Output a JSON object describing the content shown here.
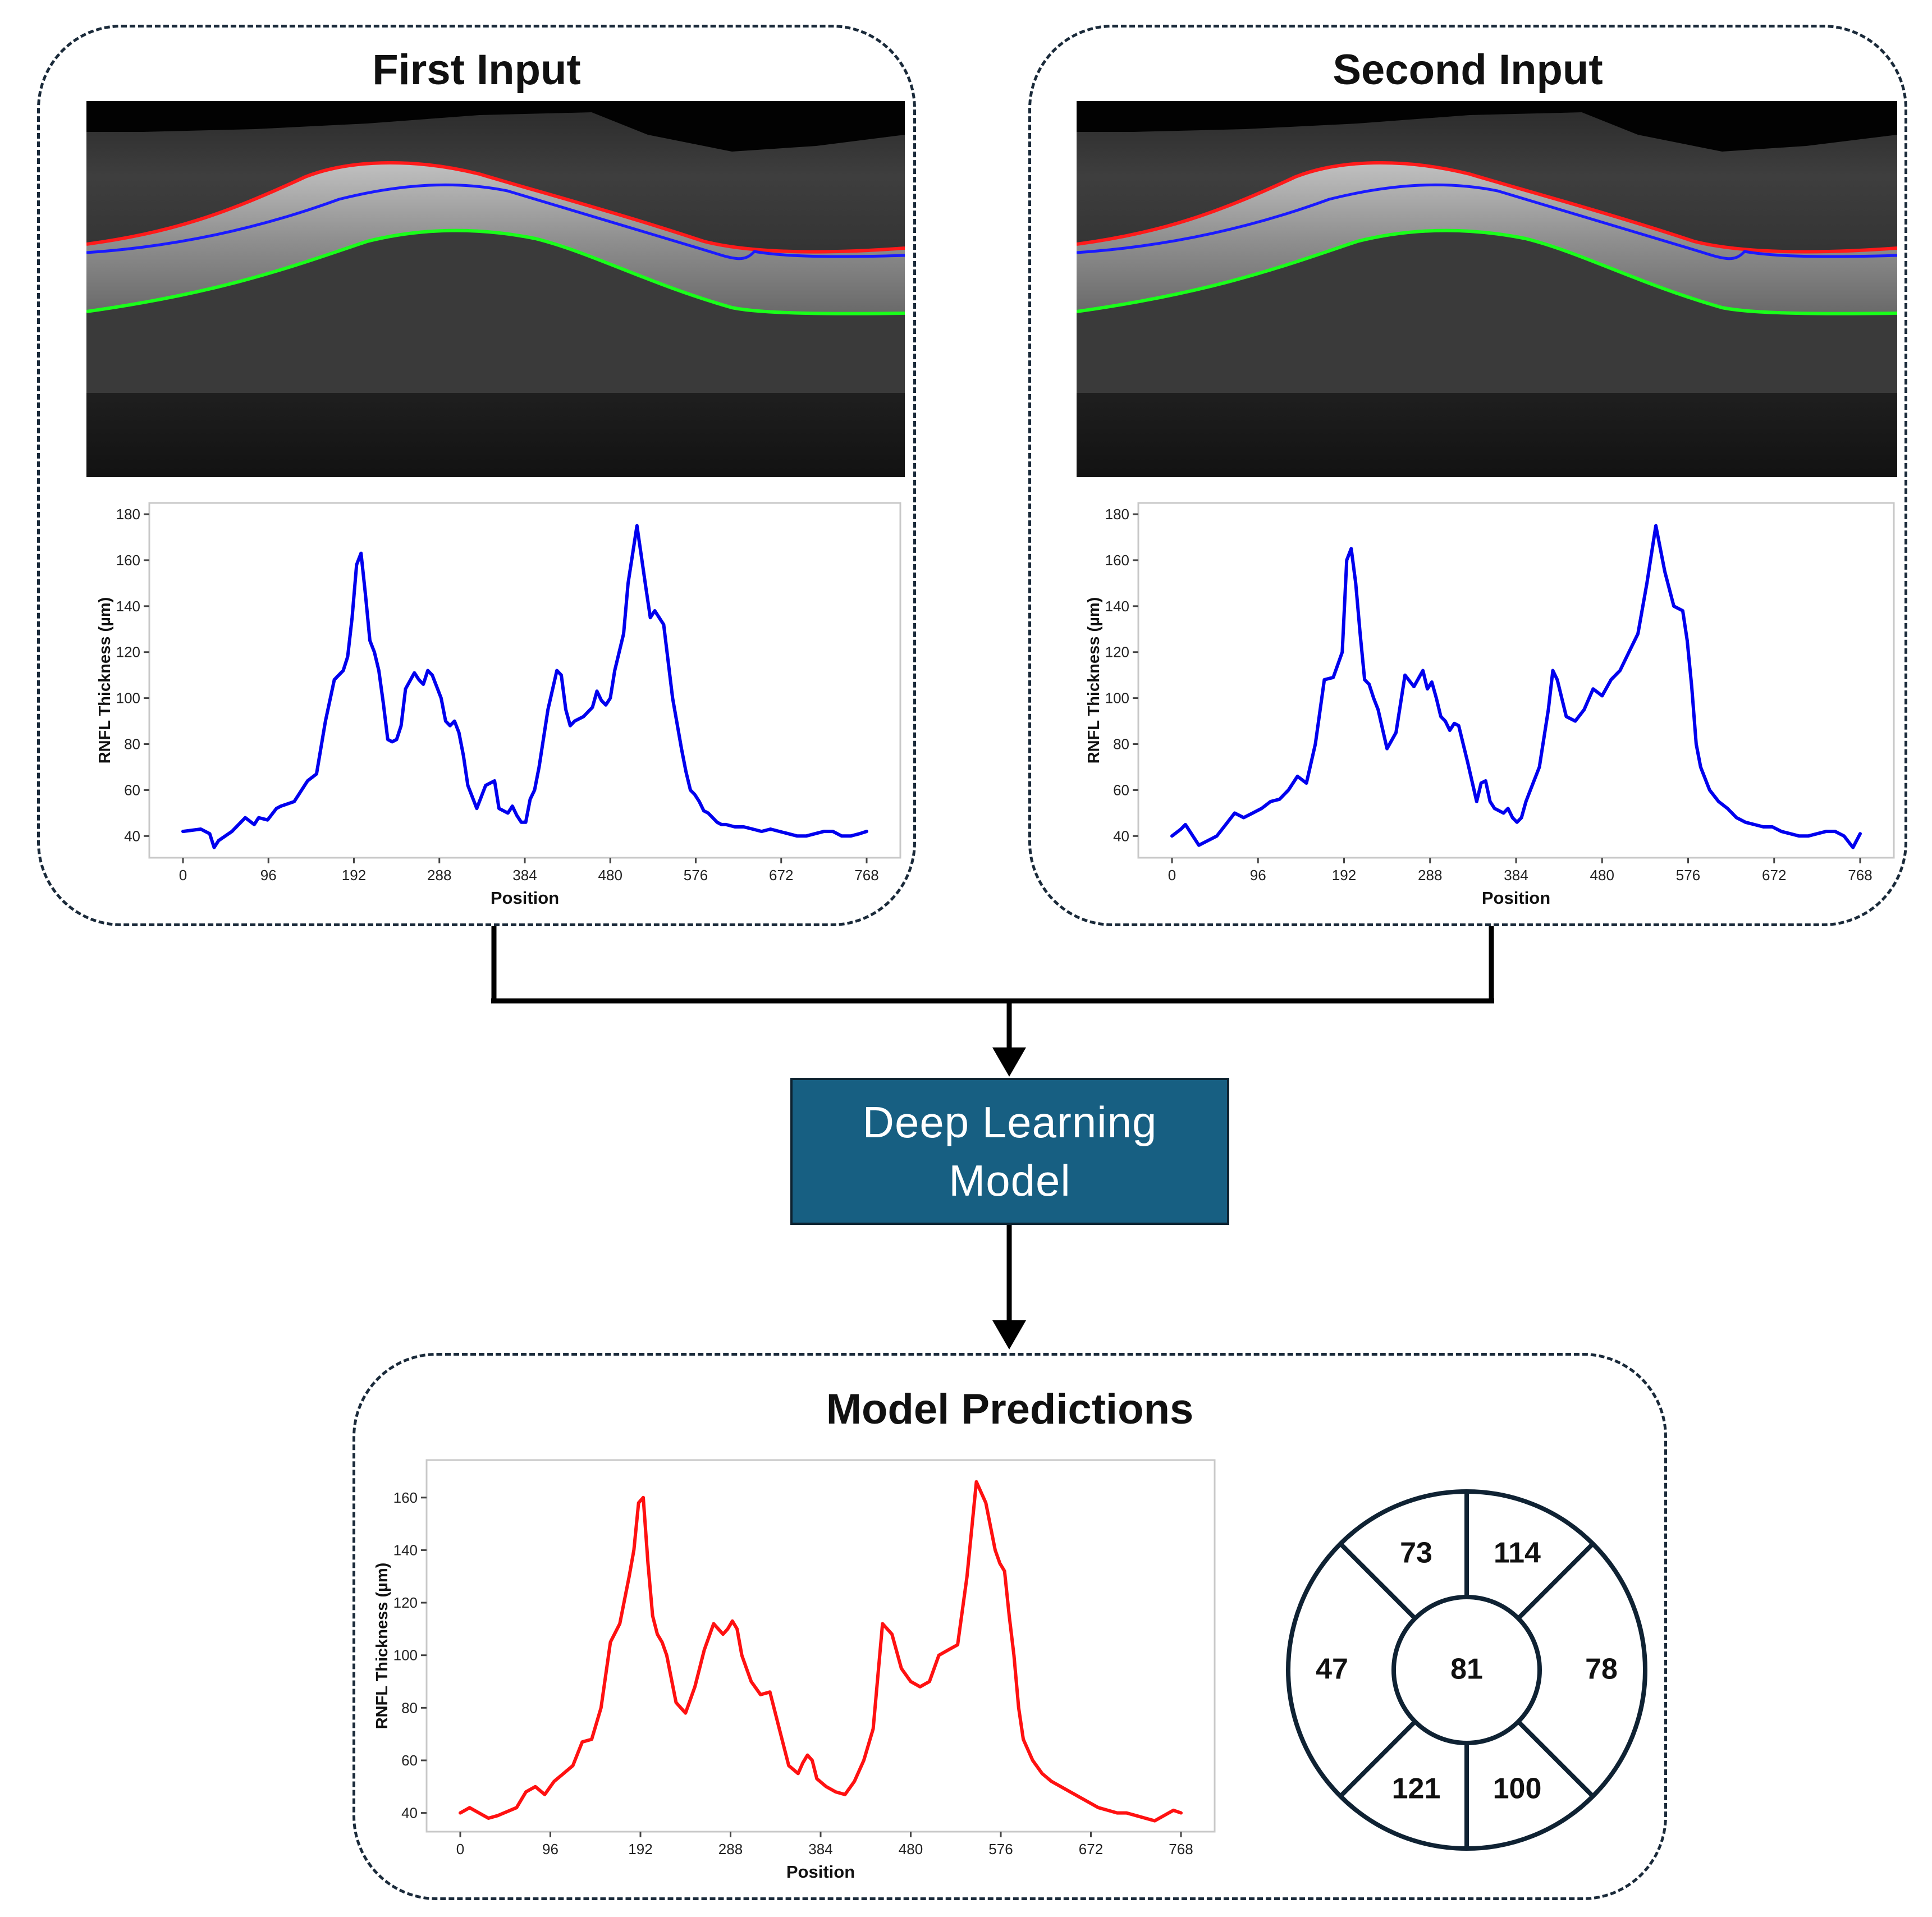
{
  "colors": {
    "panel_border": "#1a2a3a",
    "model_fill": "#175f82",
    "red_boundary": "#ff1a1a",
    "blue_boundary": "#1a1aff",
    "green_boundary": "#1aff1a",
    "input_line": "#0000ee",
    "prediction_line": "#ff1111"
  },
  "panels": {
    "first_input": {
      "title": "First Input"
    },
    "second_input": {
      "title": "Second Input"
    },
    "predictions": {
      "title": "Model Predictions"
    }
  },
  "model": {
    "line1": "Deep Learning",
    "line2": "Model"
  },
  "chart_data": [
    {
      "id": "first",
      "type": "line",
      "title": "",
      "xlabel": "Position",
      "ylabel": "RNFL Thickness (µm)",
      "xlim": [
        0,
        768
      ],
      "ylim": [
        33,
        180
      ],
      "xticks": [
        0,
        96,
        192,
        288,
        384,
        480,
        576,
        672,
        768
      ],
      "yticks": [
        40,
        60,
        80,
        100,
        120,
        140,
        160,
        180
      ],
      "color": "#0000ee",
      "x": [
        0,
        20,
        30,
        35,
        40,
        55,
        70,
        80,
        85,
        95,
        105,
        110,
        125,
        140,
        150,
        160,
        170,
        180,
        185,
        190,
        195,
        200,
        205,
        210,
        215,
        220,
        225,
        230,
        235,
        240,
        245,
        250,
        260,
        265,
        270,
        275,
        280,
        290,
        295,
        300,
        305,
        310,
        315,
        320,
        330,
        340,
        350,
        355,
        360,
        365,
        370,
        375,
        380,
        385,
        390,
        395,
        400,
        410,
        420,
        425,
        430,
        435,
        440,
        450,
        460,
        465,
        470,
        475,
        480,
        485,
        490,
        495,
        500,
        510,
        520,
        525,
        530,
        540,
        550,
        560,
        565,
        570,
        575,
        580,
        585,
        590,
        595,
        600,
        605,
        610,
        620,
        630,
        640,
        650,
        660,
        670,
        680,
        690,
        700,
        710,
        720,
        730,
        740,
        750,
        760,
        768
      ],
      "y": [
        42,
        43,
        41,
        35,
        38,
        42,
        48,
        45,
        48,
        47,
        52,
        53,
        55,
        64,
        67,
        90,
        108,
        112,
        118,
        135,
        158,
        163,
        145,
        125,
        120,
        112,
        98,
        82,
        81,
        82,
        88,
        104,
        111,
        108,
        106,
        112,
        110,
        100,
        90,
        88,
        90,
        85,
        75,
        62,
        52,
        62,
        64,
        52,
        51,
        50,
        53,
        49,
        46,
        46,
        56,
        60,
        70,
        95,
        112,
        110,
        95,
        88,
        90,
        92,
        96,
        103,
        99,
        97,
        100,
        112,
        120,
        128,
        150,
        175,
        148,
        135,
        138,
        132,
        100,
        78,
        68,
        60,
        58,
        55,
        51,
        50,
        48,
        46,
        45,
        45,
        44,
        44,
        43,
        42,
        43,
        42,
        41,
        40,
        40,
        41,
        42,
        42,
        40,
        40,
        41,
        42
      ]
    },
    {
      "id": "second",
      "type": "line",
      "title": "",
      "xlabel": "Position",
      "ylabel": "RNFL Thickness (µm)",
      "xlim": [
        0,
        768
      ],
      "ylim": [
        33,
        180
      ],
      "xticks": [
        0,
        96,
        192,
        288,
        384,
        480,
        576,
        672,
        768
      ],
      "yticks": [
        40,
        60,
        80,
        100,
        120,
        140,
        160,
        180
      ],
      "color": "#0000ee",
      "x": [
        0,
        10,
        15,
        20,
        30,
        40,
        50,
        60,
        70,
        80,
        90,
        100,
        110,
        120,
        130,
        140,
        150,
        160,
        170,
        180,
        190,
        195,
        200,
        205,
        210,
        215,
        220,
        225,
        230,
        240,
        250,
        260,
        270,
        280,
        285,
        290,
        295,
        300,
        305,
        310,
        315,
        320,
        330,
        340,
        345,
        350,
        355,
        360,
        365,
        370,
        375,
        380,
        385,
        390,
        395,
        400,
        410,
        420,
        425,
        430,
        440,
        450,
        460,
        470,
        480,
        490,
        500,
        510,
        520,
        530,
        540,
        550,
        560,
        570,
        575,
        580,
        585,
        590,
        595,
        600,
        610,
        620,
        630,
        640,
        650,
        660,
        670,
        680,
        690,
        700,
        710,
        720,
        730,
        740,
        750,
        760,
        768
      ],
      "y": [
        40,
        43,
        45,
        42,
        36,
        38,
        40,
        45,
        50,
        48,
        50,
        52,
        55,
        56,
        60,
        66,
        63,
        80,
        108,
        109,
        120,
        160,
        165,
        150,
        128,
        108,
        106,
        100,
        95,
        78,
        85,
        110,
        105,
        112,
        104,
        107,
        100,
        92,
        90,
        86,
        89,
        88,
        72,
        55,
        63,
        64,
        55,
        52,
        51,
        50,
        52,
        48,
        46,
        48,
        55,
        60,
        70,
        95,
        112,
        108,
        92,
        90,
        95,
        104,
        101,
        108,
        112,
        120,
        128,
        150,
        175,
        155,
        140,
        138,
        125,
        105,
        80,
        70,
        65,
        60,
        55,
        52,
        48,
        46,
        45,
        44,
        44,
        42,
        41,
        40,
        40,
        41,
        42,
        42,
        40,
        35,
        41
      ]
    },
    {
      "id": "prediction",
      "type": "line",
      "title": "",
      "xlabel": "Position",
      "ylabel": "RNFL Thickness (µm)",
      "xlim": [
        0,
        768
      ],
      "ylim": [
        35,
        170
      ],
      "xticks": [
        0,
        96,
        192,
        288,
        384,
        480,
        576,
        672,
        768
      ],
      "yticks": [
        40,
        60,
        80,
        100,
        120,
        140,
        160
      ],
      "color": "#ff1111",
      "x": [
        0,
        10,
        20,
        30,
        40,
        60,
        70,
        80,
        90,
        100,
        110,
        120,
        130,
        140,
        150,
        160,
        170,
        180,
        185,
        190,
        195,
        200,
        205,
        210,
        215,
        220,
        230,
        240,
        250,
        260,
        270,
        280,
        285,
        290,
        295,
        300,
        305,
        310,
        320,
        330,
        340,
        350,
        360,
        365,
        370,
        375,
        380,
        390,
        400,
        410,
        420,
        430,
        440,
        450,
        460,
        470,
        480,
        490,
        500,
        510,
        520,
        530,
        540,
        550,
        560,
        570,
        575,
        580,
        585,
        590,
        595,
        600,
        610,
        620,
        630,
        640,
        650,
        660,
        670,
        680,
        690,
        700,
        710,
        720,
        730,
        740,
        750,
        760,
        768
      ],
      "y": [
        40,
        42,
        40,
        38,
        39,
        42,
        48,
        50,
        47,
        52,
        55,
        58,
        67,
        68,
        80,
        105,
        112,
        130,
        140,
        158,
        160,
        135,
        115,
        108,
        105,
        100,
        82,
        78,
        88,
        102,
        112,
        108,
        110,
        113,
        110,
        100,
        95,
        90,
        85,
        86,
        72,
        58,
        55,
        59,
        62,
        60,
        53,
        50,
        48,
        47,
        52,
        60,
        72,
        112,
        108,
        95,
        90,
        88,
        90,
        100,
        102,
        104,
        130,
        166,
        158,
        140,
        135,
        132,
        115,
        100,
        80,
        68,
        60,
        55,
        52,
        50,
        48,
        46,
        44,
        42,
        41,
        40,
        40,
        39,
        38,
        37,
        39,
        41,
        40
      ]
    }
  ],
  "sector_chart": {
    "center": "81",
    "top_left": "73",
    "top_right": "114",
    "left": "47",
    "right": "78",
    "bottom_left": "121",
    "bottom_right": "100"
  }
}
